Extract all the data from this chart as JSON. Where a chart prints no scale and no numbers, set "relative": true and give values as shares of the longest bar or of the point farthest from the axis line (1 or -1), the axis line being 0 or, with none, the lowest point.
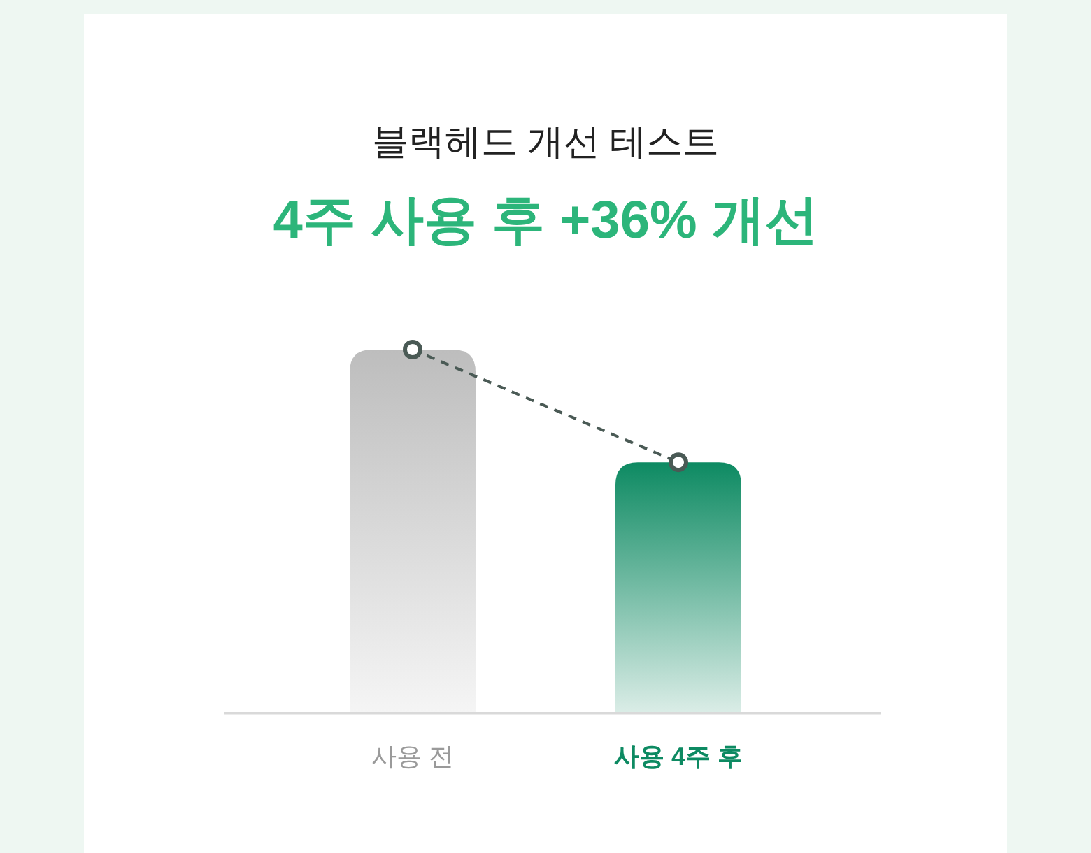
{
  "chart_data": {
    "type": "bar",
    "title": "블랙헤드 개선 테스트",
    "subtitle": "4주 사용 후 +36% 개선",
    "relative": true,
    "categories": [
      "사용 전",
      "사용 4주 후"
    ],
    "series": [
      {
        "values": [
          1,
          0.69
        ],
        "colors": [
          "#bdbdbd",
          "#0d8a62"
        ]
      },
      {
        "type": "line",
        "values": [
          1,
          0.69
        ],
        "color": "#4a5a55",
        "marker": "circle",
        "line_style": "dashed"
      }
    ]
  }
}
